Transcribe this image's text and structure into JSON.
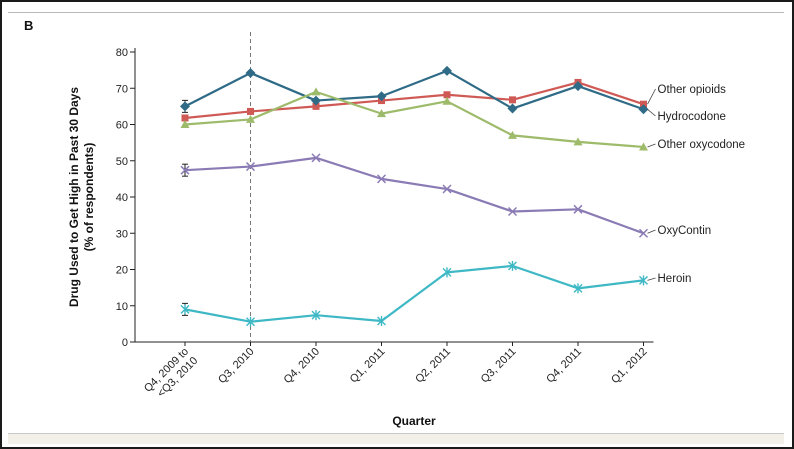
{
  "panel_label": "B",
  "chart_data": {
    "type": "line",
    "ylabel_line1": "Drug Used to Get High in Past 30 Days",
    "ylabel_line2": "(% of respondents)",
    "xlabel": "Quarter",
    "ylim": [
      0,
      80
    ],
    "yticks": [
      "0",
      "10",
      "20",
      "30",
      "40",
      "50",
      "60",
      "70",
      "80"
    ],
    "categories": [
      [
        "Q4, 2009 to",
        "<Q3, 2010"
      ],
      [
        "Q3, 2010"
      ],
      [
        "Q4, 2010"
      ],
      [
        "Q1, 2011"
      ],
      [
        "Q2, 2011"
      ],
      [
        "Q3, 2011"
      ],
      [
        "Q4, 2011"
      ],
      [
        "Q1, 2012"
      ]
    ],
    "divider_after_index": 1,
    "series": [
      {
        "name": "Other opioids",
        "color": "#cf5a55",
        "marker": "square",
        "values": [
          61.8,
          63.6,
          65,
          66.6,
          68.2,
          66.8,
          71.6,
          65.6
        ]
      },
      {
        "name": "Hydrocodone",
        "color": "#2f6b86",
        "marker": "diamond",
        "values": [
          65,
          74.2,
          66.6,
          67.8,
          74.8,
          64.4,
          70.6,
          64.2
        ]
      },
      {
        "name": "Other oxycodone",
        "color": "#9dbb6a",
        "marker": "triangle",
        "values": [
          60,
          61.4,
          69,
          63,
          66.4,
          57,
          55.2,
          53.8
        ]
      },
      {
        "name": "OxyContin",
        "color": "#8b7bb5",
        "marker": "x",
        "values": [
          47.4,
          48.4,
          50.8,
          45,
          42.2,
          36,
          36.6,
          30
        ]
      },
      {
        "name": "Heroin",
        "color": "#3fb8c6",
        "marker": "star",
        "values": [
          9,
          5.6,
          7.4,
          5.8,
          19.2,
          21,
          14.8,
          17
        ]
      }
    ]
  }
}
